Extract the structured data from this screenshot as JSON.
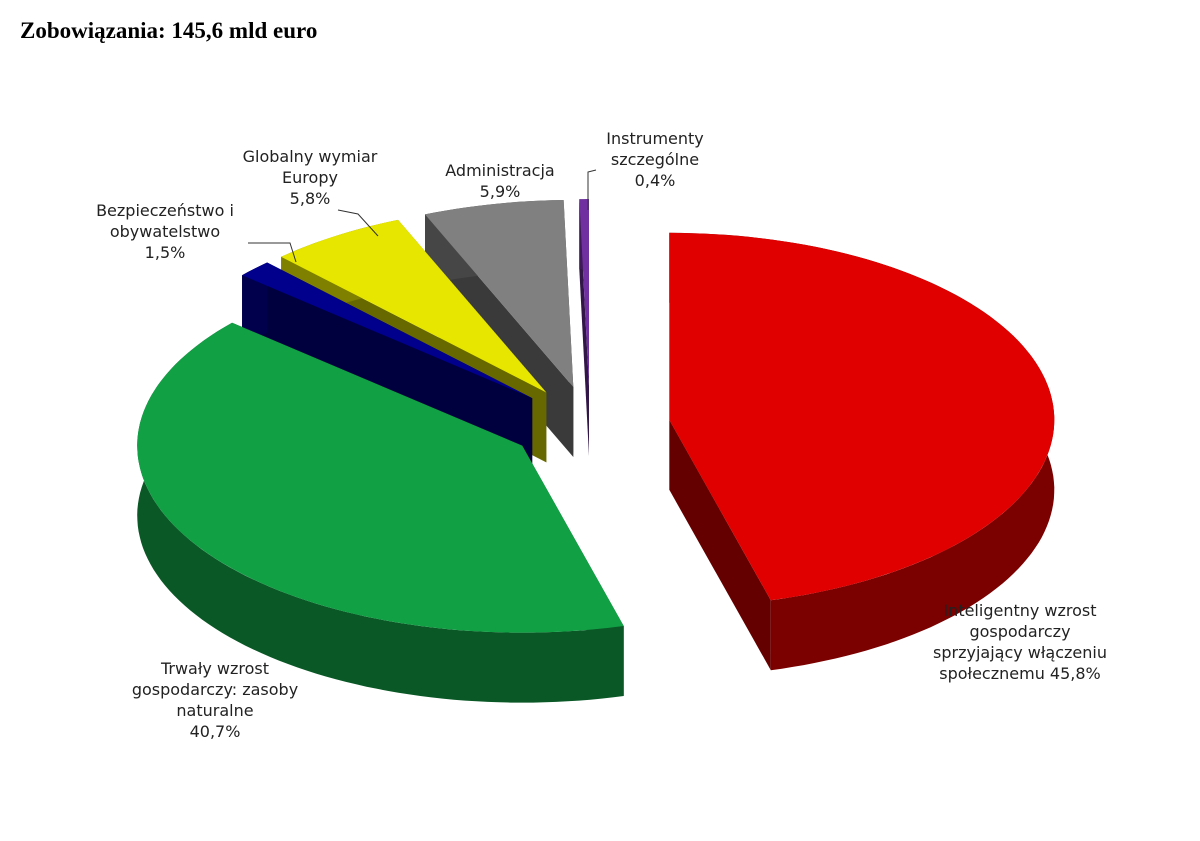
{
  "chart_data": {
    "type": "pie3d",
    "title": "Zobowiązania: 145,6 mld euro",
    "categories": [
      "Inteligentny wzrost gospodarczy sprzyjający włączeniu społecznemu",
      "Trwały wzrost gospodarczy: zasoby naturalne",
      "Bezpieczeństwo i obywatelstwo",
      "Globalny wymiar Europy",
      "Administracja",
      "Instrumenty szczególne"
    ],
    "values": [
      45.8,
      40.7,
      1.5,
      5.8,
      5.9,
      0.4
    ],
    "value_labels": [
      "45,8%",
      "40,7%",
      "1,5%",
      "5,8%",
      "5,9%",
      "0,4%"
    ],
    "colors": [
      "#e00000",
      "#12a045",
      "#00008c",
      "#e6e600",
      "#808080",
      "#7030a0"
    ]
  }
}
